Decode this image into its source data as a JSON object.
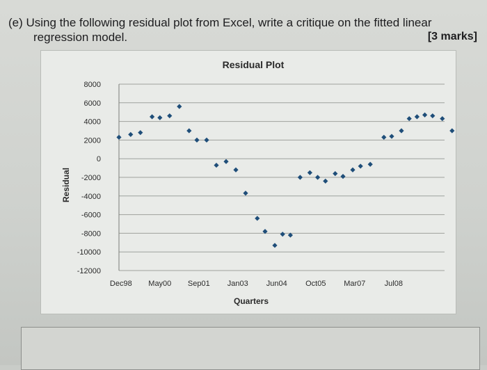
{
  "question": {
    "line1": "(e) Using the following residual plot from Excel, write a critique on the fitted linear",
    "line2": "regression model.",
    "marks": "[3 marks]"
  },
  "chart_data": {
    "type": "scatter",
    "title": "Residual Plot",
    "xlabel": "Quarters",
    "ylabel": "Residual",
    "ylim": [
      -12000,
      8000
    ],
    "y_ticks": [
      8000,
      6000,
      4000,
      2000,
      0,
      -2000,
      -4000,
      -6000,
      -8000,
      -10000,
      -12000
    ],
    "x_tick_labels": [
      "Dec98",
      "May00",
      "Sep01",
      "Jan03",
      "Jun04",
      "Oct05",
      "Mar07",
      "Jul08"
    ],
    "grid": true,
    "marker_color": "#1f4e79",
    "series": [
      {
        "points": [
          {
            "x": 0.0,
            "y": 2300
          },
          {
            "x": 0.3,
            "y": 2600
          },
          {
            "x": 0.55,
            "y": 2800
          },
          {
            "x": 0.85,
            "y": 4500
          },
          {
            "x": 1.05,
            "y": 4400
          },
          {
            "x": 1.3,
            "y": 4600
          },
          {
            "x": 1.55,
            "y": 5600
          },
          {
            "x": 1.8,
            "y": 3000
          },
          {
            "x": 2.0,
            "y": 2000
          },
          {
            "x": 2.25,
            "y": 2000
          },
          {
            "x": 2.5,
            "y": -700
          },
          {
            "x": 2.75,
            "y": -300
          },
          {
            "x": 3.0,
            "y": -1200
          },
          {
            "x": 3.25,
            "y": -3700
          },
          {
            "x": 3.55,
            "y": -6400
          },
          {
            "x": 3.75,
            "y": -7800
          },
          {
            "x": 4.0,
            "y": -9300
          },
          {
            "x": 4.2,
            "y": -8100
          },
          {
            "x": 4.4,
            "y": -8200
          },
          {
            "x": 4.65,
            "y": -2000
          },
          {
            "x": 4.9,
            "y": -1500
          },
          {
            "x": 5.1,
            "y": -2000
          },
          {
            "x": 5.3,
            "y": -2400
          },
          {
            "x": 5.55,
            "y": -1600
          },
          {
            "x": 5.75,
            "y": -1900
          },
          {
            "x": 6.0,
            "y": -1200
          },
          {
            "x": 6.2,
            "y": -800
          },
          {
            "x": 6.45,
            "y": -600
          },
          {
            "x": 6.8,
            "y": 2300
          },
          {
            "x": 7.0,
            "y": 2400
          },
          {
            "x": 7.25,
            "y": 3000
          },
          {
            "x": 7.45,
            "y": 4300
          },
          {
            "x": 7.65,
            "y": 4500
          },
          {
            "x": 7.85,
            "y": 4700
          },
          {
            "x": 8.05,
            "y": 4600
          },
          {
            "x": 8.3,
            "y": 4300
          },
          {
            "x": 8.55,
            "y": 3000
          }
        ]
      }
    ]
  }
}
